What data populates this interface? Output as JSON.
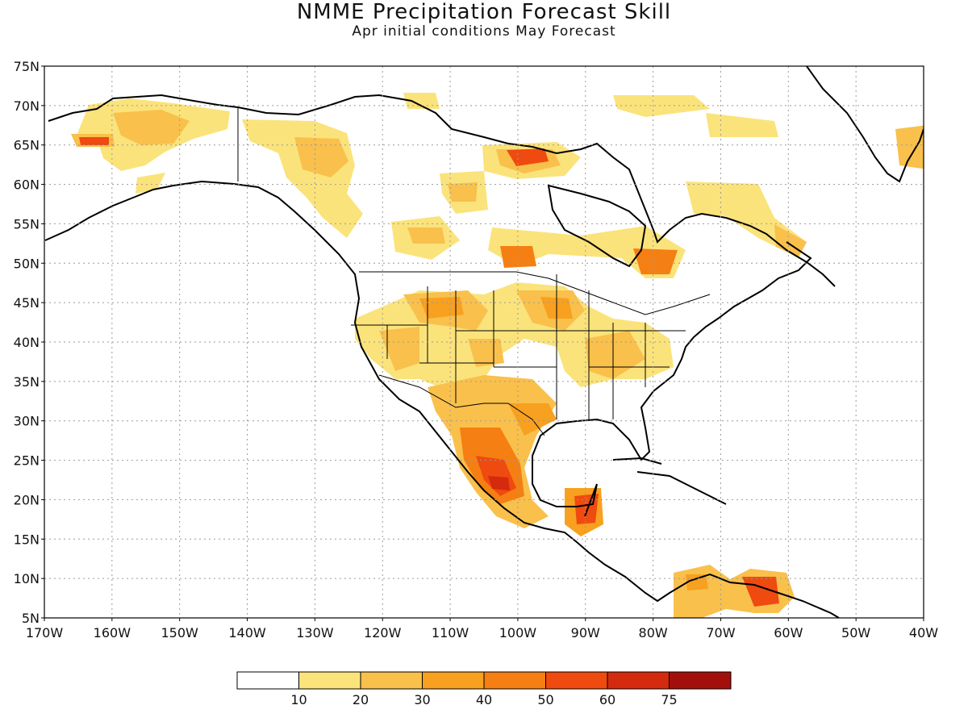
{
  "title": "NMME Precipitation Forecast Skill",
  "subtitle": "Apr initial conditions  May Forecast",
  "lat_labels": [
    "5N",
    "10N",
    "15N",
    "20N",
    "25N",
    "30N",
    "35N",
    "40N",
    "45N",
    "50N",
    "55N",
    "60N",
    "65N",
    "70N",
    "75N"
  ],
  "lon_labels": [
    "170W",
    "160W",
    "150W",
    "140W",
    "130W",
    "120W",
    "110W",
    "100W",
    "90W",
    "80W",
    "70W",
    "60W",
    "50W",
    "40W"
  ],
  "colorbar": {
    "colors": [
      "#ffffff",
      "#fbe37b",
      "#f9c04c",
      "#f8a01f",
      "#f57f12",
      "#ef4a0f",
      "#d42a0d",
      "#a3100c"
    ],
    "labels": [
      "10",
      "20",
      "30",
      "40",
      "50",
      "60",
      "75"
    ]
  },
  "colors": {
    "coast": "#000000",
    "grid": "#9a9a9a"
  }
}
